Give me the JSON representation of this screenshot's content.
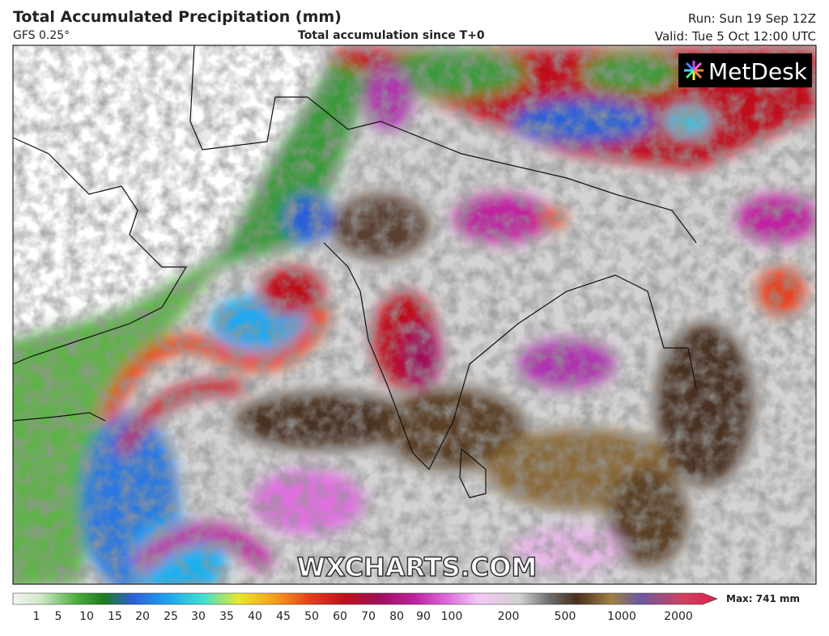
{
  "header": {
    "title": "Total Accumulated Precipitation (mm)",
    "model": "GFS 0.25°",
    "subtitle": "Total accumulation since T+0",
    "run": "Run: Sun 19 Sep 12Z",
    "valid": "Valid: Tue 5 Oct 12:00 UTC"
  },
  "map": {
    "logo": "MetDesk",
    "watermark": "WXCHARTS.COM"
  },
  "legend": {
    "ticks": [
      "1",
      "5",
      "10",
      "15",
      "20",
      "25",
      "30",
      "35",
      "40",
      "45",
      "50",
      "60",
      "70",
      "80",
      "90",
      "100",
      "200",
      "500",
      "1000",
      "2000"
    ],
    "max_label": "Max: 741 mm"
  }
}
